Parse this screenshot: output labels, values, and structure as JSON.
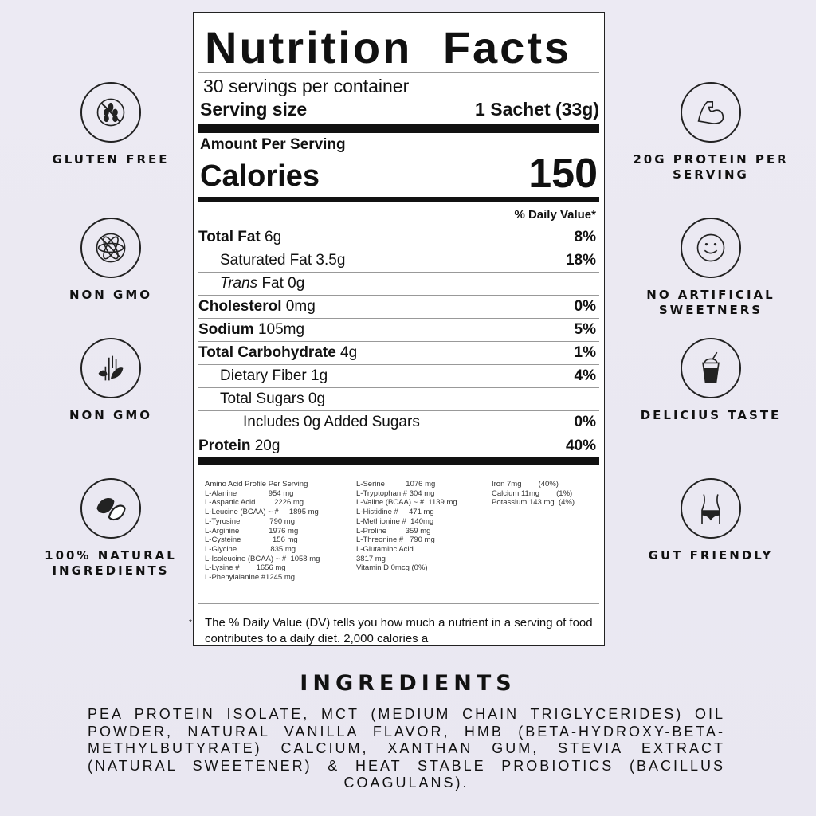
{
  "label": {
    "title": "Nutrition Facts",
    "servings": "30 servings per container",
    "serving_size_label": "Serving size",
    "serving_size_value": "1 Sachet (33g)",
    "amount_per_serving": "Amount Per Serving",
    "calories_label": "Calories",
    "calories_value": "150",
    "dv_header": "% Daily Value*",
    "rows": [
      {
        "bold": "Total Fat",
        "rest": " 6g",
        "dv": "8%"
      },
      {
        "bold": "",
        "rest": "Saturated Fat 3.5g",
        "dv": "18%"
      },
      {
        "italic": "Trans",
        "rest": " Fat 0g",
        "dv": ""
      },
      {
        "bold": "Cholesterol",
        "rest": " 0mg",
        "dv": "0%"
      },
      {
        "bold": "Sodium",
        "rest": " 105mg",
        "dv": "5%"
      },
      {
        "bold": "Total Carbohydrate",
        "rest": " 4g",
        "dv": "1%"
      },
      {
        "bold": "",
        "rest": "Dietary Fiber 1g",
        "dv": "4%"
      },
      {
        "bold": "",
        "rest": "Total Sugars 0g",
        "dv": ""
      },
      {
        "bold": "",
        "rest": "Includes 0g Added Sugars",
        "dv": "0%"
      },
      {
        "bold": "Protein",
        "rest": " 20g",
        "dv": "40%"
      }
    ],
    "amino_col1": [
      "Amino Acid Profile Per Serving",
      "L-Alanine               954 mg",
      "L-Aspartic Acid         2226 mg",
      "L-Leucine (BCAA) ~ #     1895 mg",
      "L-Tyrosine              790 mg",
      "L-Arginine              1976 mg",
      "L-Cysteine               156 mg",
      "L-Glycine                835 mg",
      "L-Isoleucine (BCAA) ~ #  1058 mg",
      "L-Lysine #        1656 mg",
      "L-Phenylalanine #1245 mg"
    ],
    "amino_col2": [
      "L-Serine          1076 mg",
      "L-Tryptophan # 304 mg",
      "L-Valine (BCAA) ~ #  1139 mg",
      "L-Histidine #     471 mg",
      "L-Methionine #  140mg",
      "L-Proline         359 mg",
      "L-Threonine #   790 mg",
      "L-Glutaminc Acid",
      "3817 mg",
      "Vitamin D 0mcg (0%)"
    ],
    "amino_col3": [
      "Iron 7mg        (40%)",
      "Calcium 11mg        (1%)",
      "Potassium 143 mg  (4%)"
    ],
    "footnote_mark": "*",
    "footnote": "The % Daily Value (DV) tells you how much a nutrient in a serving of food contributes to a daily diet. 2,000 calories a"
  },
  "badges_left": [
    {
      "icon": "wheat-crossed-icon",
      "text": "GLUTEN FREE"
    },
    {
      "icon": "atom-crossed-icon",
      "text": "NON GMO"
    },
    {
      "icon": "hand-leaf-icon",
      "text": "NON GMO"
    },
    {
      "icon": "leaves-icon",
      "text": "100% NATURAL INGREDIENTS"
    }
  ],
  "badges_right": [
    {
      "icon": "flexed-arm-icon",
      "text": "20G PROTEIN PER SERVING"
    },
    {
      "icon": "smiley-icon",
      "text": "NO ARTIFICIAL SWEETNERS"
    },
    {
      "icon": "shake-cup-icon",
      "text": "DELICIUS TASTE"
    },
    {
      "icon": "torso-icon",
      "text": "GUT FRIENDLY"
    }
  ],
  "ingredients": {
    "heading": "INGREDIENTS",
    "text": "Pea Protein Isolate, MCT (Medium Chain Triglycerides) Oil Powder, Natural Vanilla Flavor, HMB (Beta-Hydroxy-Beta-Methylbutyrate) Calcium, Xanthan Gum, Stevia Extract (Natural Sweetener) & Heat Stable Probiotics (Bacillus Coagulans)."
  }
}
